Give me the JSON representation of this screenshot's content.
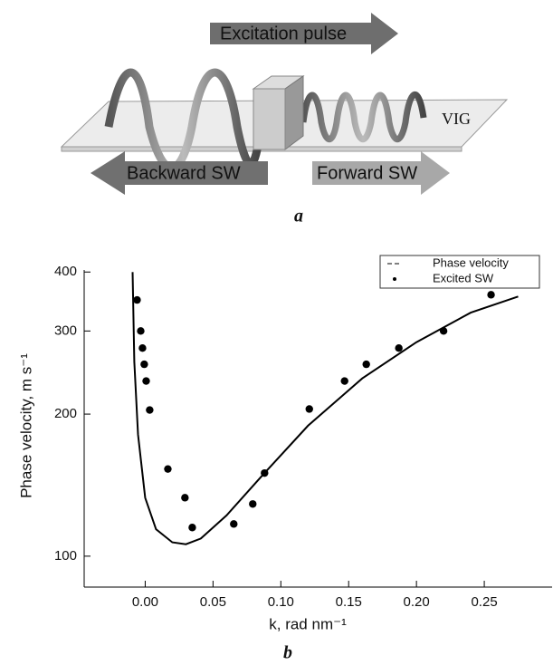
{
  "diagram": {
    "pulse": "Excitation pulse",
    "medium": "VIG",
    "backward": "Backward SW",
    "forward": "Forward SW",
    "panel": "a"
  },
  "chart_data": {
    "type": "line",
    "panel": "b",
    "x_label": "k, rad nm⁻¹",
    "y_label": "Phase velocity, m s⁻¹",
    "xlim": [
      -0.045,
      0.3
    ],
    "ylim": [
      86,
      404
    ],
    "log_scale": "y",
    "xticks": [
      {
        "value": 0,
        "label": "0.00"
      },
      {
        "value": 0.05,
        "label": "0.05"
      },
      {
        "value": 0.1,
        "label": "0.10"
      },
      {
        "value": 0.15,
        "label": "0.15"
      },
      {
        "value": 0.2,
        "label": "0.20"
      },
      {
        "value": 0.25,
        "label": "0.25"
      }
    ],
    "yticks": [
      100,
      200,
      300,
      400
    ],
    "legend": "top-right",
    "series": [
      {
        "name": "Phase velocity",
        "mode": "line",
        "color": "#000000",
        "x": [
          -0.0093,
          -0.008,
          -0.0053,
          0,
          0.008,
          0.02,
          0.03,
          0.041,
          0.06,
          0.087,
          0.12,
          0.16,
          0.2,
          0.24,
          0.275
        ],
        "values": [
          400,
          258,
          181,
          133,
          114,
          107,
          106,
          109,
          122,
          149,
          189,
          238,
          284,
          328,
          355
        ]
      },
      {
        "name": "Excited SW",
        "mode": "markers",
        "color": "#000000",
        "x": [
          -0.006,
          -0.0033,
          -0.002,
          -0.0007,
          0.0007,
          0.0033,
          0.0167,
          0.0293,
          0.0347,
          0.0653,
          0.0793,
          0.088,
          0.121,
          0.147,
          0.163,
          0.187,
          0.22,
          0.255
        ],
        "values": [
          349,
          300,
          276,
          255,
          235,
          204,
          153,
          133,
          115,
          117,
          129,
          150,
          205,
          235,
          255,
          276,
          300,
          358
        ]
      }
    ]
  }
}
